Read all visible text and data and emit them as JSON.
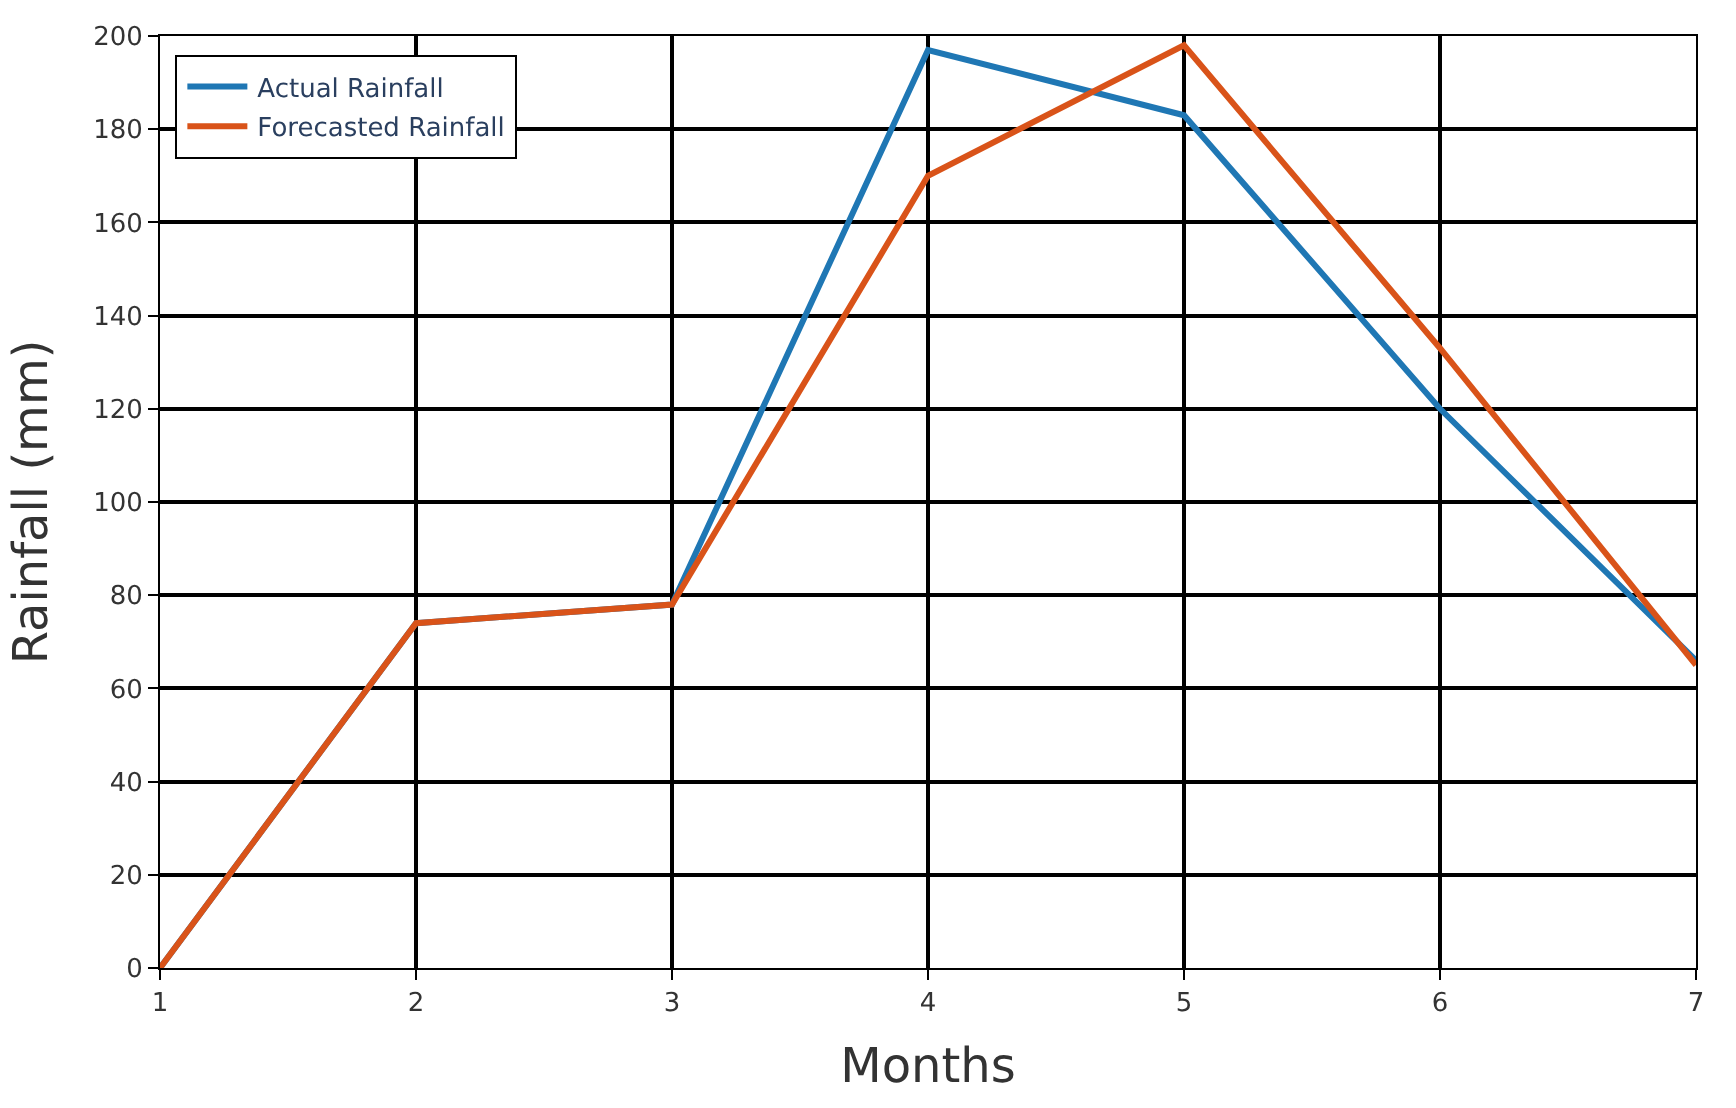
{
  "chart_data": {
    "type": "line",
    "xlabel": "Months",
    "ylabel": "Rainfall (mm)",
    "x": [
      1,
      2,
      3,
      4,
      5,
      6,
      7
    ],
    "series": [
      {
        "name": "Actual Rainfall",
        "color": "#1f77b4",
        "values": [
          0,
          74,
          78,
          197,
          183,
          120,
          66
        ]
      },
      {
        "name": "Forecasted Rainfall",
        "color": "#d95319",
        "values": [
          0,
          74,
          78,
          170,
          198,
          133,
          65
        ]
      }
    ],
    "xlim": [
      1,
      7
    ],
    "xticks": [
      1,
      2,
      3,
      4,
      5,
      6,
      7
    ],
    "ylim": [
      0,
      200
    ],
    "yticks": [
      0,
      20,
      40,
      60,
      80,
      100,
      120,
      140,
      160,
      180,
      200
    ],
    "grid": true,
    "legend": "top left",
    "marker": "none",
    "line_style": "solid"
  }
}
